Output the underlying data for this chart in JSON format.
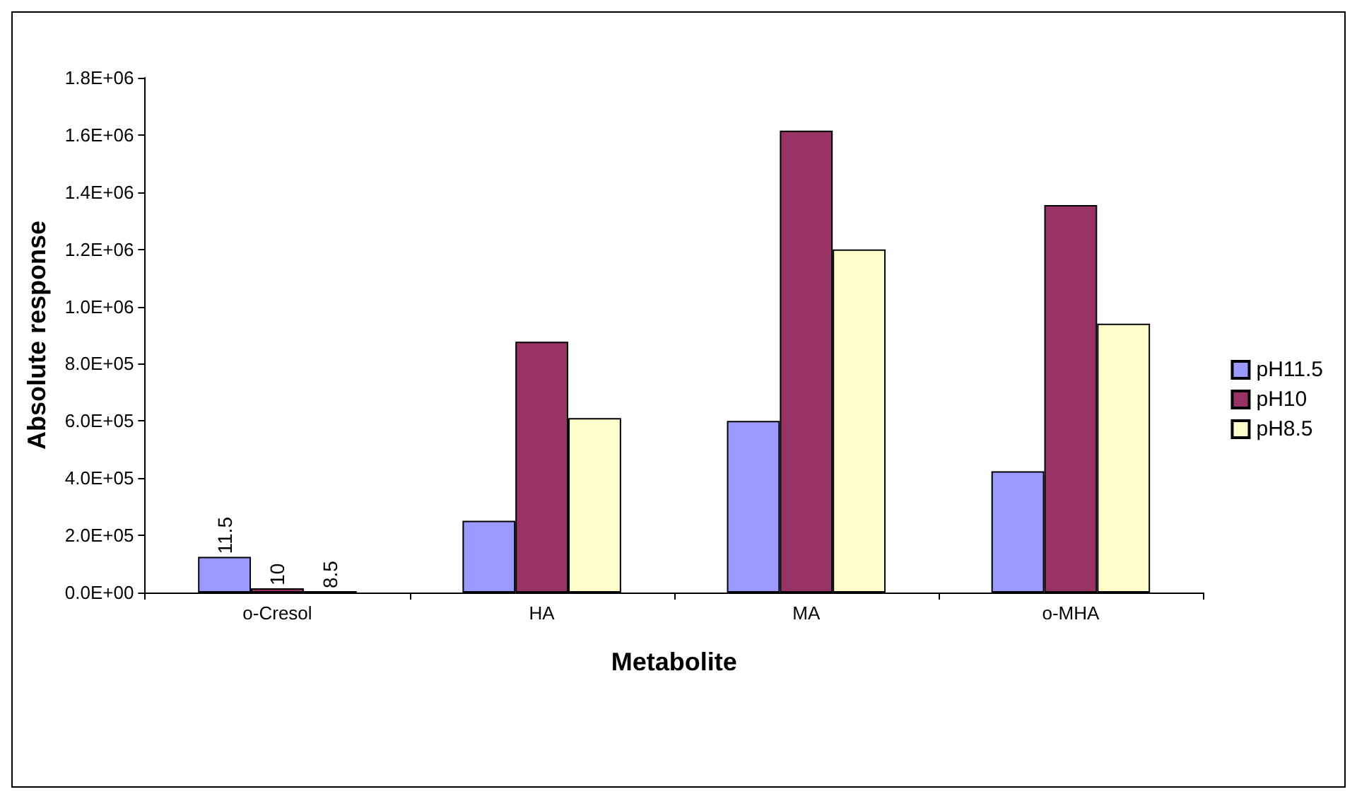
{
  "chart_data": {
    "type": "bar",
    "xlabel": "Metabolite",
    "ylabel": "Absolute response",
    "categories": [
      "o-Cresol",
      "HA",
      "MA",
      "o-MHA"
    ],
    "series": [
      {
        "name": "pH11.5",
        "color": "#9999ff",
        "values": [
          125000,
          251000,
          600000,
          424000
        ]
      },
      {
        "name": "pH10",
        "color": "#993366",
        "values": [
          15000,
          877000,
          1615000,
          1355000
        ]
      },
      {
        "name": "pH8.5",
        "color": "#ffffcc",
        "values": [
          5000,
          610000,
          1200000,
          940000
        ]
      }
    ],
    "annotations": [
      "11.5",
      "10",
      "8.5"
    ],
    "ylim": [
      0,
      1800000
    ],
    "yticks": [
      {
        "value": 0,
        "label": "0.0E+00"
      },
      {
        "value": 200000,
        "label": "2.0E+05"
      },
      {
        "value": 400000,
        "label": "4.0E+05"
      },
      {
        "value": 600000,
        "label": "6.0E+05"
      },
      {
        "value": 800000,
        "label": "8.0E+05"
      },
      {
        "value": 1000000,
        "label": "1.0E+06"
      },
      {
        "value": 1200000,
        "label": "1.2E+06"
      },
      {
        "value": 1400000,
        "label": "1.4E+06"
      },
      {
        "value": 1600000,
        "label": "1.6E+06"
      },
      {
        "value": 1800000,
        "label": "1.8E+06"
      }
    ],
    "grid": false,
    "legend": "right"
  }
}
